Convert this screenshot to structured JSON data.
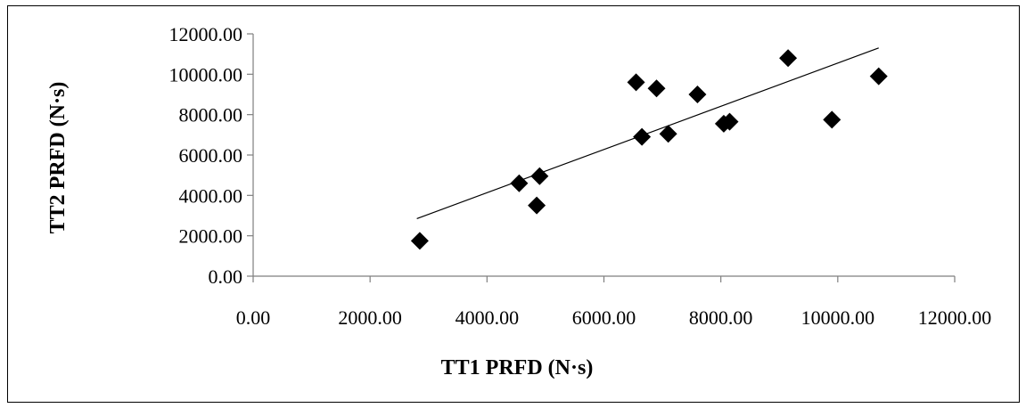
{
  "chart_data": {
    "type": "scatter",
    "title": "",
    "xlabel": "TT1  PRFD (N·s)",
    "ylabel": "TT2  PRFD (N·s)",
    "xlim": [
      0,
      12000
    ],
    "ylim": [
      0,
      12000
    ],
    "x_ticks": [
      "0.00",
      "2000.00",
      "4000.00",
      "6000.00",
      "8000.00",
      "10000.00",
      "12000.00"
    ],
    "y_ticks": [
      "0.00",
      "2000.00",
      "4000.00",
      "6000.00",
      "8000.00",
      "10000.00",
      "12000.00"
    ],
    "grid": false,
    "legend": "none",
    "marker": "diamond",
    "marker_color": "#000000",
    "trendline": {
      "type": "linear",
      "x": [
        2800,
        10700
      ],
      "y": [
        2850,
        11300
      ]
    },
    "series": [
      {
        "x": [
          2850,
          4550,
          4850,
          4900,
          6550,
          6650,
          6900,
          7100,
          7600,
          8050,
          8150,
          9150,
          9900,
          10700
        ],
        "y": [
          1750,
          4600,
          3500,
          4950,
          9600,
          6900,
          9300,
          7050,
          9000,
          7550,
          7650,
          10800,
          7750,
          9900
        ]
      }
    ]
  }
}
